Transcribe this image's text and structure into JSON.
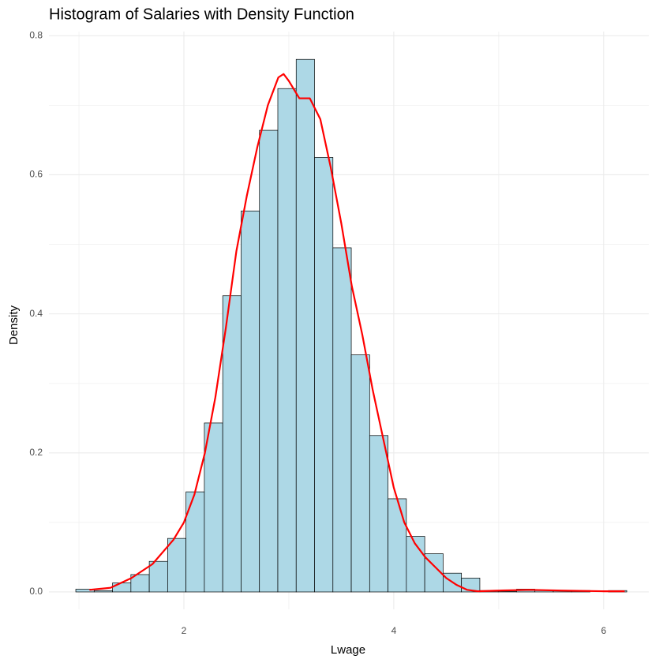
{
  "chart_data": {
    "type": "histogram",
    "title": "Histogram of Salaries with Density Function",
    "xlabel": "Lwage",
    "ylabel": "Density",
    "bins": [
      0.97,
      1.145,
      1.32,
      1.495,
      1.67,
      1.845,
      2.02,
      2.195,
      2.37,
      2.545,
      2.72,
      2.895,
      3.07,
      3.245,
      3.42,
      3.595,
      3.77,
      3.945,
      4.12,
      4.295,
      4.47,
      4.645,
      4.82,
      4.995,
      5.17,
      5.345,
      5.52,
      5.695,
      5.87,
      6.045,
      6.22
    ],
    "values": [
      0.004,
      0.002,
      0.013,
      0.025,
      0.044,
      0.077,
      0.144,
      0.243,
      0.426,
      0.548,
      0.664,
      0.724,
      0.766,
      0.625,
      0.495,
      0.341,
      0.225,
      0.134,
      0.08,
      0.055,
      0.027,
      0.02,
      0.002,
      0.001,
      0.004,
      0.002,
      0.002,
      0.002,
      0,
      0.002
    ],
    "color": "#add8e6",
    "edgecolor": "#000000",
    "lines": [
      {
        "color": "#ff0000",
        "x": [
          1.1,
          1.3,
          1.5,
          1.7,
          1.9,
          2.0,
          2.1,
          2.2,
          2.3,
          2.4,
          2.5,
          2.6,
          2.7,
          2.8,
          2.9,
          2.95,
          3.0,
          3.1,
          3.2,
          3.3,
          3.4,
          3.5,
          3.6,
          3.7,
          3.8,
          3.9,
          4.0,
          4.1,
          4.2,
          4.3,
          4.4,
          4.5,
          4.6,
          4.7,
          4.8,
          5.0,
          5.3,
          5.6,
          6.0,
          6.2
        ],
        "values": [
          0.003,
          0.006,
          0.02,
          0.04,
          0.075,
          0.1,
          0.14,
          0.2,
          0.28,
          0.38,
          0.49,
          0.57,
          0.64,
          0.7,
          0.74,
          0.745,
          0.735,
          0.71,
          0.71,
          0.68,
          0.61,
          0.53,
          0.44,
          0.37,
          0.29,
          0.22,
          0.15,
          0.1,
          0.07,
          0.05,
          0.035,
          0.02,
          0.01,
          0.003,
          0.001,
          0.002,
          0.003,
          0.002,
          0.001,
          0.001
        ]
      }
    ],
    "xlim": [
      0.714,
      6.43
    ],
    "ylim": [
      -0.025,
      0.806
    ],
    "xticks": [
      2,
      4,
      6
    ],
    "yticks": [
      {
        "value": 0,
        "label": "0.0"
      },
      {
        "value": 0.2,
        "label": "0.2"
      },
      {
        "value": 0.4,
        "label": "0.4"
      },
      {
        "value": 0.6,
        "label": "0.6"
      },
      {
        "value": 0.8,
        "label": "0.8"
      }
    ],
    "minor_xticks": [
      1,
      3,
      5
    ],
    "minor_yticks": [
      0.1,
      0.3,
      0.5,
      0.7
    ],
    "grid": true
  }
}
